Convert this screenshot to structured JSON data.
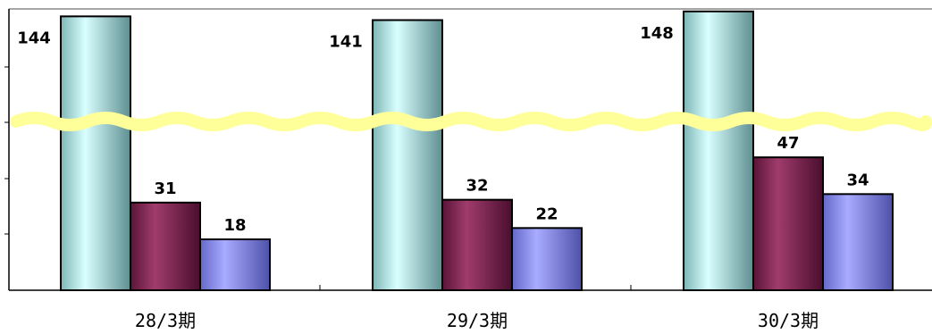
{
  "chart_data": {
    "type": "bar",
    "categories": [
      "28/3期",
      "29/3期",
      "30/3期"
    ],
    "series": [
      {
        "values": [
          144,
          141,
          148
        ],
        "color": "#a8ece8"
      },
      {
        "values": [
          31,
          32,
          47
        ],
        "color": "#8a2858"
      },
      {
        "values": [
          18,
          22,
          34
        ],
        "color": "#8c8ff5"
      }
    ],
    "title": "",
    "xlabel": "",
    "ylabel": "",
    "axis_break": {
      "lower_range": [
        0,
        60
      ],
      "upper_range": [
        60,
        150
      ]
    },
    "grid": false,
    "legend": "none"
  }
}
